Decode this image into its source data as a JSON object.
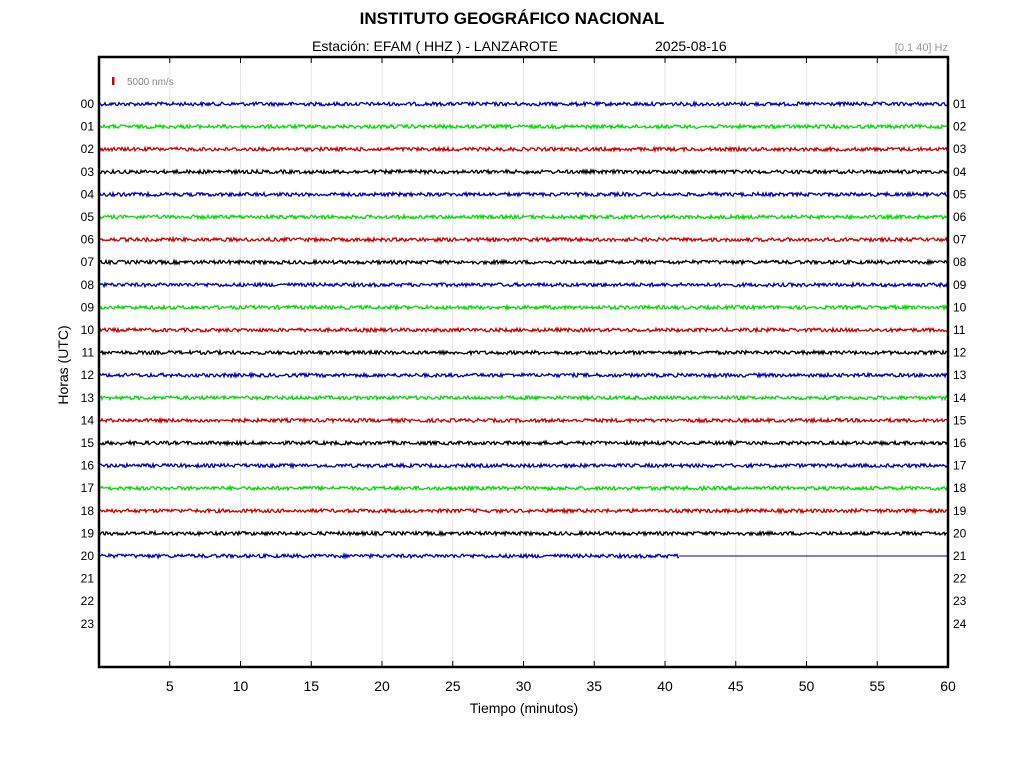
{
  "header": {
    "title": "INSTITUTO GEOGRÁFICO NACIONAL",
    "station_text": "Estación:  EFAM ( HHZ ) - LANZAROTE",
    "date": "2025-08-16",
    "band": "[0.1 40] Hz"
  },
  "chart_data": {
    "type": "line",
    "xlabel": "Tiempo (minutos)",
    "ylabel": "Horas (UTC)",
    "xlim": [
      0,
      60
    ],
    "x_ticks": [
      5,
      10,
      15,
      20,
      25,
      30,
      35,
      40,
      45,
      50,
      55,
      60
    ],
    "y_ticks_left": [
      "00",
      "01",
      "02",
      "03",
      "04",
      "05",
      "06",
      "07",
      "08",
      "09",
      "10",
      "11",
      "12",
      "13",
      "14",
      "15",
      "16",
      "17",
      "18",
      "19",
      "20",
      "21",
      "22",
      "23"
    ],
    "y_ticks_right": [
      "01",
      "02",
      "03",
      "04",
      "05",
      "06",
      "07",
      "08",
      "09",
      "10",
      "11",
      "12",
      "13",
      "14",
      "15",
      "16",
      "17",
      "18",
      "19",
      "20",
      "21",
      "22",
      "23",
      "24"
    ],
    "grid": "vertical",
    "scale_label": "5000 nm/s",
    "scale_color": "#d00000",
    "trace_colors": [
      "#0000b8",
      "#00dd00",
      "#cc0000",
      "#000000"
    ],
    "traces": [
      {
        "hour": "00",
        "minutes_recorded": 60
      },
      {
        "hour": "01",
        "minutes_recorded": 60
      },
      {
        "hour": "02",
        "minutes_recorded": 60
      },
      {
        "hour": "03",
        "minutes_recorded": 60
      },
      {
        "hour": "04",
        "minutes_recorded": 60
      },
      {
        "hour": "05",
        "minutes_recorded": 60
      },
      {
        "hour": "06",
        "minutes_recorded": 60
      },
      {
        "hour": "07",
        "minutes_recorded": 60
      },
      {
        "hour": "08",
        "minutes_recorded": 60
      },
      {
        "hour": "09",
        "minutes_recorded": 60
      },
      {
        "hour": "10",
        "minutes_recorded": 60
      },
      {
        "hour": "11",
        "minutes_recorded": 60
      },
      {
        "hour": "12",
        "minutes_recorded": 60
      },
      {
        "hour": "13",
        "minutes_recorded": 60
      },
      {
        "hour": "14",
        "minutes_recorded": 60
      },
      {
        "hour": "15",
        "minutes_recorded": 60
      },
      {
        "hour": "16",
        "minutes_recorded": 60
      },
      {
        "hour": "17",
        "minutes_recorded": 60
      },
      {
        "hour": "18",
        "minutes_recorded": 60
      },
      {
        "hour": "19",
        "minutes_recorded": 60
      },
      {
        "hour": "20",
        "minutes_recorded": 41
      }
    ]
  }
}
